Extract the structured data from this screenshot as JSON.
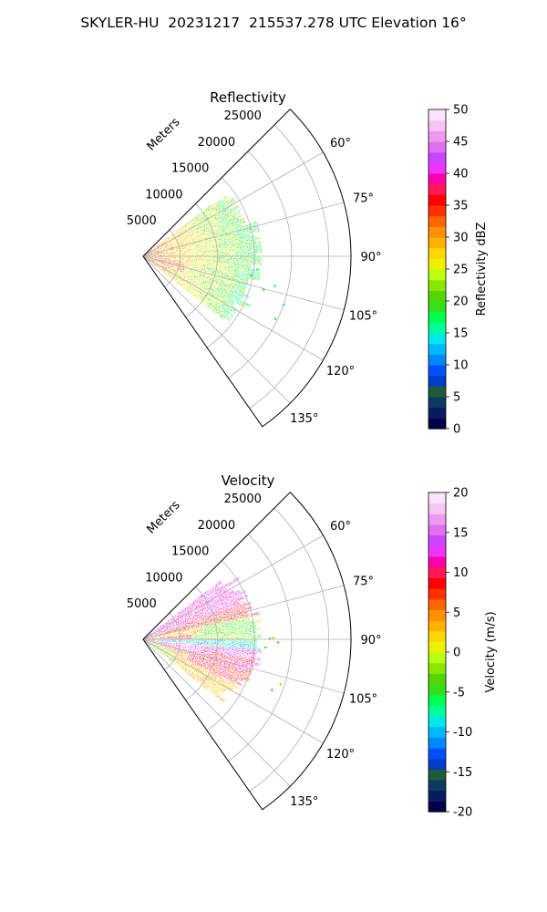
{
  "title": "SKYLER-HU  20231217  215537.278 UTC Elevation 16°",
  "colors": {
    "reflectivity_colormap": [
      "#00004c",
      "#0a1a5e",
      "#0c3a60",
      "#1f5a3a",
      "#003ec8",
      "#0050ff",
      "#0088ff",
      "#00b8ff",
      "#00e8e8",
      "#00ff99",
      "#00ff50",
      "#33e01a",
      "#55d400",
      "#88e800",
      "#bbff11",
      "#eef000",
      "#ffd700",
      "#ffb000",
      "#ff9000",
      "#ff6600",
      "#ff3000",
      "#ff0000",
      "#ff1a55",
      "#ff00aa",
      "#ee33ff",
      "#cc44ff",
      "#e070f0",
      "#ee99ee",
      "#f7c4f4",
      "#fbe4fb"
    ],
    "velocity_colormap": [
      "#00004c",
      "#0a1a5e",
      "#0c3a60",
      "#1f5a3a",
      "#003ec8",
      "#0050ff",
      "#0088ff",
      "#00b8ff",
      "#00e8e8",
      "#00ff99",
      "#00ff50",
      "#33e01a",
      "#55d400",
      "#88e800",
      "#bbff11",
      "#eef000",
      "#ffd700",
      "#ffb000",
      "#ff9000",
      "#ff6600",
      "#ff3000",
      "#ff0000",
      "#ff1a55",
      "#ff00aa",
      "#ee33ff",
      "#cc44ff",
      "#e070f0",
      "#ee99ee",
      "#f7c4f4",
      "#fbe4fb"
    ]
  },
  "chart_data": [
    {
      "type": "heatmap",
      "subtype": "polar-sector",
      "title": "Reflectivity",
      "range_axis_label": "Meters",
      "range_ticks": [
        "5000",
        "10000",
        "15000",
        "20000",
        "25000"
      ],
      "range_max": 28000,
      "azimuth_range_deg": [
        45,
        145
      ],
      "azimuth_ticks": [
        "60°",
        "75°",
        "90°",
        "105°",
        "120°",
        "135°"
      ],
      "grid": true,
      "colorbar": {
        "label": "Reflectivity dBZ",
        "min": 0,
        "max": 50,
        "ticks": [
          "0",
          "5",
          "10",
          "15",
          "20",
          "25",
          "30",
          "35",
          "40",
          "45",
          "50"
        ]
      },
      "data_extent": {
        "azimuth_deg": [
          53,
          128
        ],
        "range_m": [
          0,
          16000
        ]
      },
      "values_summary": {
        "near_range_dBZ": [
          25,
          38
        ],
        "mid_range_dBZ": [
          18,
          28
        ],
        "far_range_dBZ": [
          12,
          20
        ]
      }
    },
    {
      "type": "heatmap",
      "subtype": "polar-sector",
      "title": "Velocity",
      "range_axis_label": "Meters",
      "range_ticks": [
        "5000",
        "10000",
        "15000",
        "20000",
        "25000"
      ],
      "range_max": 28000,
      "azimuth_range_deg": [
        45,
        145
      ],
      "azimuth_ticks": [
        "60°",
        "75°",
        "90°",
        "105°",
        "120°",
        "135°"
      ],
      "grid": true,
      "colorbar": {
        "label": "Velocity (m/s)",
        "min": -20,
        "max": 20,
        "ticks": [
          "-20",
          "-15",
          "-10",
          "-5",
          "0",
          "5",
          "10",
          "15",
          "20"
        ]
      },
      "data_extent": {
        "azimuth_deg": [
          53,
          128
        ],
        "range_m": [
          0,
          16000
        ]
      },
      "values_summary": {
        "azimuth_60_75_ms": [
          8,
          16
        ],
        "azimuth_80_88_ms": [
          -4,
          4
        ],
        "azimuth_90_95_ms": [
          -12,
          -7
        ],
        "azimuth_98_115_ms": [
          5,
          13
        ],
        "azimuth_118_128_ms": [
          0,
          6
        ]
      }
    }
  ]
}
